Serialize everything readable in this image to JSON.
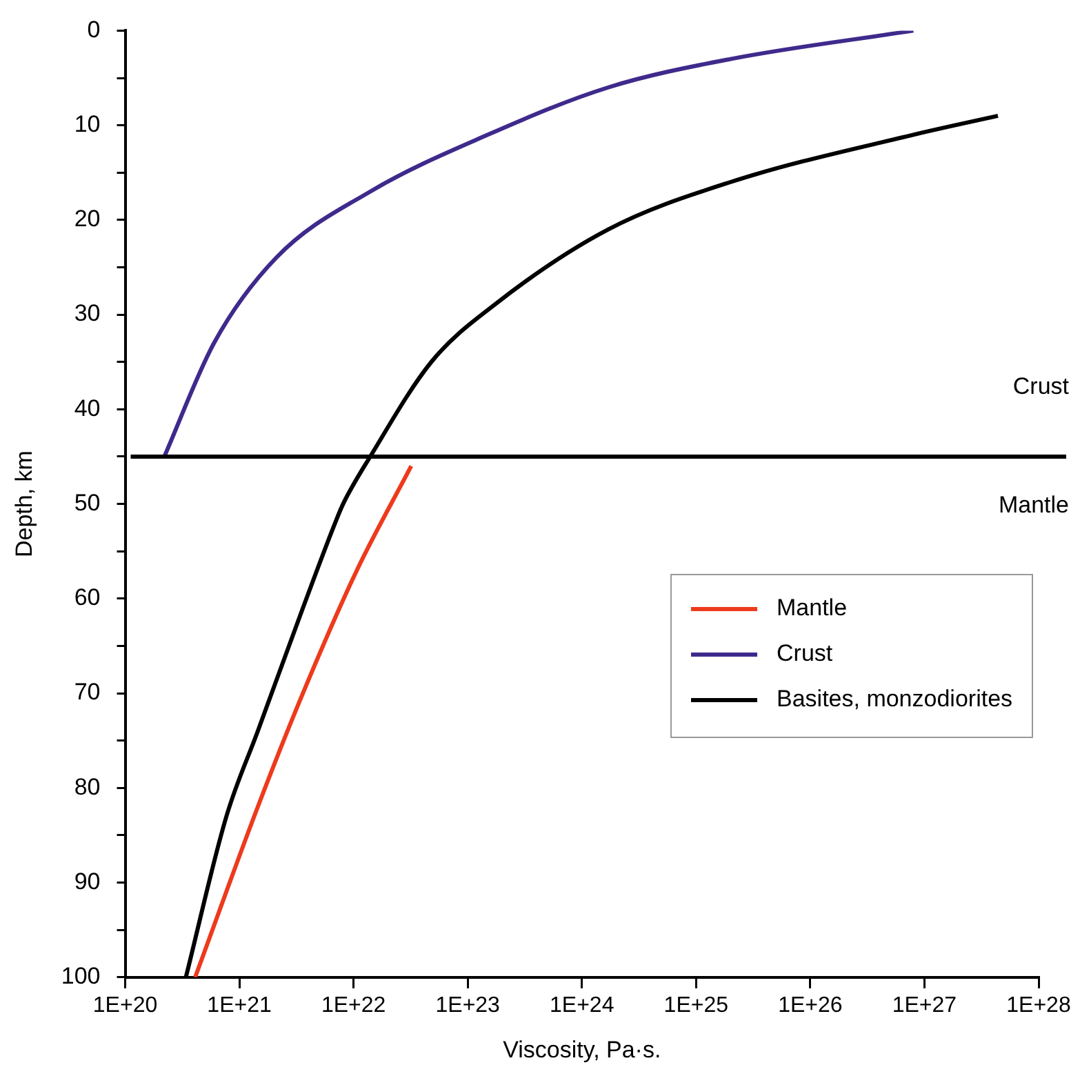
{
  "chart_data": {
    "type": "line",
    "xlabel": "Viscosity, Pa·s.",
    "ylabel": "Depth, km",
    "log": "x",
    "xlim": [
      1e+20,
      1e+28
    ],
    "xticks": [
      {
        "value": 1e+20,
        "label": "1E+20"
      },
      {
        "value": 1e+21,
        "label": "1E+21"
      },
      {
        "value": 1e+22,
        "label": "1E+22"
      },
      {
        "value": 1e+23,
        "label": "1E+23"
      },
      {
        "value": 1e+24,
        "label": "1E+24"
      },
      {
        "value": 1e+25,
        "label": "1E+25"
      },
      {
        "value": 1e+26,
        "label": "1E+26"
      },
      {
        "value": 1e+27,
        "label": "1E+27"
      },
      {
        "value": 1e+28,
        "label": "1E+28"
      }
    ],
    "ylim": [
      100,
      0
    ],
    "yticks": [
      0,
      {
        "value": 5,
        "label": null
      },
      10,
      {
        "value": 15,
        "label": null
      },
      20,
      {
        "value": 25,
        "label": null
      },
      30,
      {
        "value": 35,
        "label": null
      },
      40,
      {
        "value": 45,
        "label": null
      },
      50,
      {
        "value": 55,
        "label": null
      },
      60,
      {
        "value": 65,
        "label": null
      },
      70,
      {
        "value": 75,
        "label": null
      },
      80,
      {
        "value": 85,
        "label": null
      },
      90,
      {
        "value": 95,
        "label": null
      },
      100
    ],
    "grid": false,
    "legend": "right",
    "marker": "none",
    "line_style": "solid",
    "series": [
      {
        "name": "Mantle",
        "color": "#ee3a1c",
        "x": [
          3.2e+22,
          1.07e+22,
          3.6e+21,
          1.45e+21,
          4.1e+20
        ],
        "values": [
          46,
          57,
          70,
          82,
          100
        ]
      },
      {
        "name": "Crust",
        "color": "#3f2a8c",
        "x": [
          2.2e+20,
          6e+20,
          2.1e+21,
          1.4e+22,
          1.5e+23,
          1.7e+24,
          2e+25,
          8e+26
        ],
        "values": [
          45,
          33,
          24,
          17,
          11,
          6,
          3,
          0
        ]
      },
      {
        "name": "Basites, monzodiorites",
        "color": "#000000",
        "x": [
          4.4e+27,
          8e+26,
          2e+25,
          1.7e+24,
          1.7e+23,
          4.8e+22,
          1.4e+22,
          8.1e+21,
          6.9e+21,
          3.6e+21,
          1.45e+21,
          7.7e+20,
          3.4e+20
        ],
        "values": [
          9,
          11,
          16,
          21,
          29,
          35,
          45,
          50,
          52,
          61,
          74,
          83,
          100
        ]
      }
    ],
    "ref_lines": [
      {
        "axis": "y",
        "value": 45,
        "color": "#000000"
      }
    ],
    "annotations": [
      "Crust",
      "Mantle"
    ]
  }
}
